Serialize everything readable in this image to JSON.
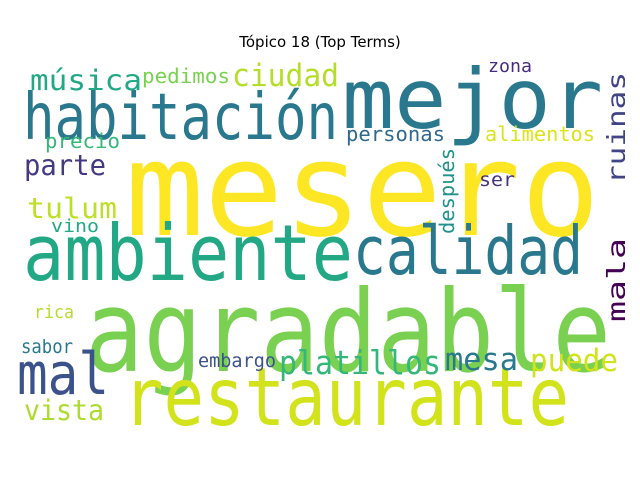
{
  "title": "Tópico 18 (Top Terms)",
  "chart_data": {
    "type": "wordcloud",
    "title": "Tópico 18 (Top Terms)",
    "words": [
      {
        "text": "mesero",
        "color": "#fde725"
      },
      {
        "text": "agradable",
        "color": "#7ad151"
      },
      {
        "text": "mejor",
        "color": "#2a788e"
      },
      {
        "text": "ambiente",
        "color": "#22a884"
      },
      {
        "text": "habitación",
        "color": "#2a788e"
      },
      {
        "text": "restaurante",
        "color": "#d2e21b"
      },
      {
        "text": "calidad",
        "color": "#2a788e"
      },
      {
        "text": "mal",
        "color": "#3b528b"
      },
      {
        "text": "platillos",
        "color": "#35b779"
      },
      {
        "text": "ciudad",
        "color": "#b5de2b"
      },
      {
        "text": "música",
        "color": "#22a884"
      },
      {
        "text": "ruinas",
        "color": "#414487"
      },
      {
        "text": "mala",
        "color": "#440154"
      },
      {
        "text": "mesa",
        "color": "#2a788e"
      },
      {
        "text": "puede",
        "color": "#d2e21b"
      },
      {
        "text": "vista",
        "color": "#addc30"
      },
      {
        "text": "tulum",
        "color": "#bddf26"
      },
      {
        "text": "parte",
        "color": "#443983"
      },
      {
        "text": "personas",
        "color": "#31688e"
      },
      {
        "text": "alimentos",
        "color": "#dde318"
      },
      {
        "text": "precio",
        "color": "#35b779"
      },
      {
        "text": "pedimos",
        "color": "#7ad151"
      },
      {
        "text": "después",
        "color": "#21918c"
      },
      {
        "text": "embargo",
        "color": "#3b528b"
      },
      {
        "text": "sabor",
        "color": "#2a788e"
      },
      {
        "text": "vino",
        "color": "#22a884"
      },
      {
        "text": "rica",
        "color": "#b5de2b"
      },
      {
        "text": "ser",
        "color": "#46327e"
      },
      {
        "text": "zona",
        "color": "#472d7b"
      }
    ]
  }
}
